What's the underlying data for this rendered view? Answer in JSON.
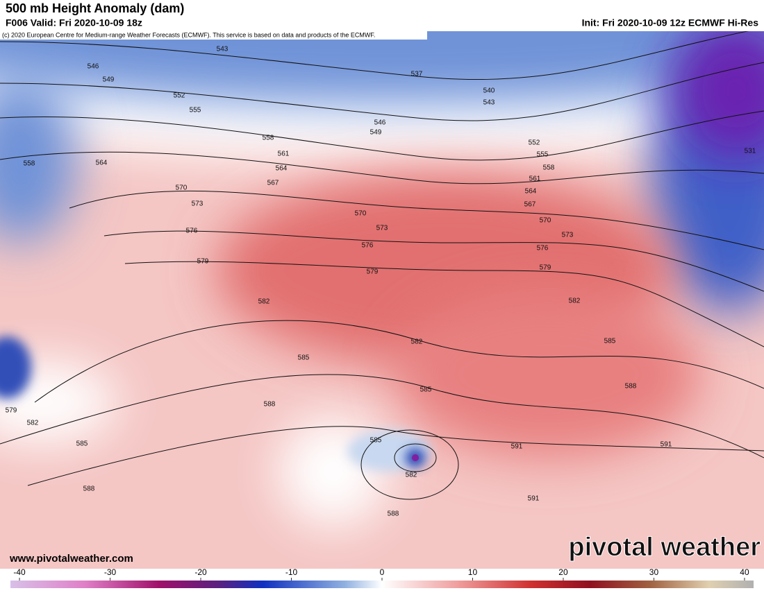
{
  "header": {
    "title": "500 mb Height Anomaly (dam)",
    "valid": "F006 Valid: Fri 2020-10-09 18z",
    "init": "Init: Fri 2020-10-09 12z ECMWF Hi-Res",
    "credit": "(c) 2020 European Centre for Medium-range Weather Forecasts (ECMWF). This service is based on data and products of the ECMWF."
  },
  "map": {
    "contour_labels": [
      543,
      546,
      549,
      552,
      555,
      537,
      540,
      543,
      546,
      549,
      558,
      561,
      564,
      564,
      558,
      552,
      555,
      558,
      561,
      564,
      567,
      570,
      573,
      576,
      579,
      531,
      570,
      567,
      573,
      570,
      573,
      576,
      576,
      579,
      579,
      582,
      582,
      582,
      585,
      585,
      585,
      588,
      588,
      579,
      582,
      585,
      585,
      591,
      591,
      582,
      588,
      591,
      588
    ]
  },
  "footer": {
    "website": "www.pivotalweather.com",
    "logo": "pivotal weather"
  },
  "colorbar": {
    "xlim": [
      -41,
      41
    ],
    "ticks": [
      -40,
      -30,
      -20,
      -10,
      0,
      10,
      20,
      30,
      40
    ]
  }
}
